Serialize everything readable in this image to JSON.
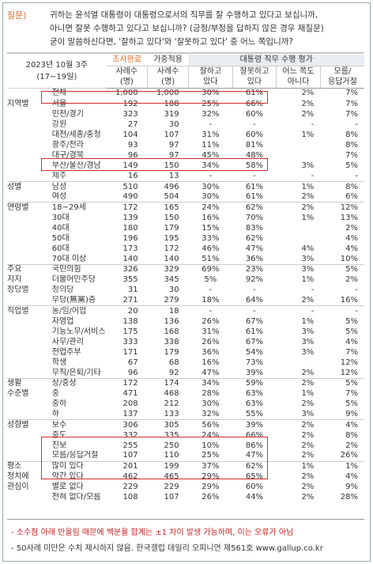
{
  "question": {
    "label": "질문)",
    "lines": [
      "귀하는 윤석열 대통령이 대통령으로서의 직무를 잘 수행하고 있다고 보십니까,",
      "아니면 잘못 수행하고 있다고 보십니까? (긍정/부정을 답하지 않은 경우 재질문)",
      "굳이 말씀하신다면, '잘하고 있다'와 '잘못하고 있다' 중 어느 쪽입니까?"
    ]
  },
  "header": {
    "period_line1": "2023년 10월 3주",
    "period_line2": "(17~19일)",
    "col_survey": "조사완료",
    "col_weighted": "가중적용",
    "col_n1": "사례수",
    "col_n1b": "(명)",
    "col_n2": "사례수",
    "col_n2b": "(명)",
    "eval_title": "대통령 직무 수행 평가",
    "good_l1": "잘하고",
    "good_l2": "있다",
    "bad_l1": "잘못하고",
    "bad_l2": "있다",
    "neither_l1": "어느 쪽도",
    "neither_l2": "아니다",
    "dk_l1": "모름/",
    "dk_l2": "응답거절"
  },
  "rows": [
    {
      "group": "",
      "sub": "전체",
      "n1": "1,000",
      "n2": "1,000",
      "good": "30%",
      "bad": "61%",
      "neither": "2%",
      "dk": "7%",
      "total": true
    },
    {
      "group": "지역별",
      "sub": "서울",
      "n1": "192",
      "n2": "188",
      "good": "25%",
      "bad": "66%",
      "neither": "2%",
      "dk": "7%"
    },
    {
      "group": "",
      "sub": "인천/경기",
      "n1": "323",
      "n2": "319",
      "good": "32%",
      "bad": "60%",
      "neither": "2%",
      "dk": "7%"
    },
    {
      "group": "",
      "sub": "강원",
      "n1": "27",
      "n2": "30",
      "good": "-",
      "bad": "-",
      "neither": "-",
      "dk": "-",
      "light": true
    },
    {
      "group": "",
      "sub": "대전/세종/충청",
      "n1": "104",
      "n2": "107",
      "good": "31%",
      "bad": "60%",
      "neither": "1%",
      "dk": "8%"
    },
    {
      "group": "",
      "sub": "광주/전라",
      "n1": "93",
      "n2": "97",
      "good": "11%",
      "bad": "81%",
      "neither": "",
      "dk": "8%"
    },
    {
      "group": "",
      "sub": "대구/경북",
      "n1": "96",
      "n2": "97",
      "good": "45%",
      "bad": "48%",
      "neither": "",
      "dk": "7%"
    },
    {
      "group": "",
      "sub": "부산/울산/경남",
      "n1": "149",
      "n2": "150",
      "good": "34%",
      "bad": "58%",
      "neither": "3%",
      "dk": "5%"
    },
    {
      "group": "",
      "sub": "제주",
      "n1": "16",
      "n2": "13",
      "good": "-",
      "bad": "-",
      "neither": "-",
      "dk": "-",
      "light": true
    },
    {
      "group": "성별",
      "sub": "남성",
      "n1": "510",
      "n2": "496",
      "good": "30%",
      "bad": "61%",
      "neither": "1%",
      "dk": "8%",
      "gap": true
    },
    {
      "group": "",
      "sub": "여성",
      "n1": "490",
      "n2": "504",
      "good": "30%",
      "bad": "61%",
      "neither": "2%",
      "dk": "6%"
    },
    {
      "group": "연령별",
      "sub": "18~29세",
      "n1": "172",
      "n2": "165",
      "good": "24%",
      "bad": "62%",
      "neither": "2%",
      "dk": "12%",
      "gap": true
    },
    {
      "group": "",
      "sub": "30대",
      "n1": "139",
      "n2": "150",
      "good": "16%",
      "bad": "70%",
      "neither": "1%",
      "dk": "13%"
    },
    {
      "group": "",
      "sub": "40대",
      "n1": "180",
      "n2": "179",
      "good": "15%",
      "bad": "83%",
      "neither": "",
      "dk": "2%"
    },
    {
      "group": "",
      "sub": "50대",
      "n1": "196",
      "n2": "195",
      "good": "33%",
      "bad": "62%",
      "neither": "",
      "dk": "4%"
    },
    {
      "group": "",
      "sub": "60대",
      "n1": "173",
      "n2": "172",
      "good": "46%",
      "bad": "47%",
      "neither": "4%",
      "dk": "4%"
    },
    {
      "group": "",
      "sub": "70대 이상",
      "n1": "140",
      "n2": "140",
      "good": "51%",
      "bad": "36%",
      "neither": "3%",
      "dk": "10%"
    },
    {
      "group": "주요",
      "sub": "국민의힘",
      "n1": "326",
      "n2": "329",
      "good": "69%",
      "bad": "23%",
      "neither": "3%",
      "dk": "5%",
      "gap": true
    },
    {
      "group": "지지",
      "sub": "더불어민주당",
      "n1": "355",
      "n2": "345",
      "good": "5%",
      "bad": "92%",
      "neither": "1%",
      "dk": "2%"
    },
    {
      "group": "정당별",
      "sub": "정의당",
      "n1": "31",
      "n2": "30",
      "good": "-",
      "bad": "-",
      "neither": "-",
      "dk": "-",
      "light": true
    },
    {
      "group": "",
      "sub": "무당(無黨)층",
      "n1": "271",
      "n2": "279",
      "good": "18%",
      "bad": "64%",
      "neither": "2%",
      "dk": "16%"
    },
    {
      "group": "직업별",
      "sub": "농/임/어업",
      "n1": "20",
      "n2": "18",
      "good": "-",
      "bad": "-",
      "neither": "-",
      "dk": "-",
      "light": true,
      "gap": true
    },
    {
      "group": "",
      "sub": "자영업",
      "n1": "138",
      "n2": "136",
      "good": "26%",
      "bad": "67%",
      "neither": "1%",
      "dk": "5%"
    },
    {
      "group": "",
      "sub": "기능노무/서비스",
      "n1": "175",
      "n2": "168",
      "good": "31%",
      "bad": "61%",
      "neither": "3%",
      "dk": "5%"
    },
    {
      "group": "",
      "sub": "사무/관리",
      "n1": "333",
      "n2": "338",
      "good": "26%",
      "bad": "67%",
      "neither": "3%",
      "dk": "4%"
    },
    {
      "group": "",
      "sub": "전업주부",
      "n1": "171",
      "n2": "179",
      "good": "36%",
      "bad": "54%",
      "neither": "3%",
      "dk": "7%"
    },
    {
      "group": "",
      "sub": "학생",
      "n1": "67",
      "n2": "68",
      "good": "16%",
      "bad": "73%",
      "neither": "",
      "dk": "12%"
    },
    {
      "group": "",
      "sub": "무직/은퇴/기타",
      "n1": "96",
      "n2": "92",
      "good": "47%",
      "bad": "39%",
      "neither": "2%",
      "dk": "12%"
    },
    {
      "group": "생활",
      "sub": "상/중상",
      "n1": "172",
      "n2": "174",
      "good": "34%",
      "bad": "59%",
      "neither": "2%",
      "dk": "5%",
      "gap": true
    },
    {
      "group": "수준별",
      "sub": "중",
      "n1": "471",
      "n2": "468",
      "good": "28%",
      "bad": "63%",
      "neither": "1%",
      "dk": "7%"
    },
    {
      "group": "",
      "sub": "중하",
      "n1": "208",
      "n2": "212",
      "good": "30%",
      "bad": "63%",
      "neither": "2%",
      "dk": "5%"
    },
    {
      "group": "",
      "sub": "하",
      "n1": "137",
      "n2": "133",
      "good": "32%",
      "bad": "55%",
      "neither": "3%",
      "dk": "9%"
    },
    {
      "group": "성향별",
      "sub": "보수",
      "n1": "306",
      "n2": "305",
      "good": "56%",
      "bad": "39%",
      "neither": "2%",
      "dk": "4%",
      "gap": true
    },
    {
      "group": "",
      "sub": "중도",
      "n1": "332",
      "n2": "335",
      "good": "24%",
      "bad": "66%",
      "neither": "2%",
      "dk": "8%"
    },
    {
      "group": "",
      "sub": "진보",
      "n1": "255",
      "n2": "250",
      "good": "10%",
      "bad": "86%",
      "neither": "2%",
      "dk": "2%"
    },
    {
      "group": "",
      "sub": "모름/응답거절",
      "n1": "107",
      "n2": "110",
      "good": "25%",
      "bad": "47%",
      "neither": "2%",
      "dk": "26%"
    },
    {
      "group": "평소",
      "sub": "많이 있다",
      "n1": "201",
      "n2": "199",
      "good": "37%",
      "bad": "62%",
      "neither": "1%",
      "dk": "1%",
      "gap": true
    },
    {
      "group": "정치에",
      "sub": "약간 있다",
      "n1": "462",
      "n2": "465",
      "good": "29%",
      "bad": "65%",
      "neither": "2%",
      "dk": "4%"
    },
    {
      "group": "관심이",
      "sub": "별로 없다",
      "n1": "229",
      "n2": "229",
      "good": "29%",
      "bad": "60%",
      "neither": "2%",
      "dk": "9%"
    },
    {
      "group": "",
      "sub": "전혀 없다/모름",
      "n1": "108",
      "n2": "107",
      "good": "26%",
      "bad": "44%",
      "neither": "2%",
      "dk": "28%"
    }
  ],
  "notes": {
    "note1": "- 소수점 아래 반올림 때문에 백분율 합계는 ±1 차이 발생 가능하며, 이는 오류가 아님",
    "note2": "- 50사례 미만은 수치 제시하지 않음. 한국갤럽 데일리 오피니언 제561호 www.gallup.co.kr"
  }
}
